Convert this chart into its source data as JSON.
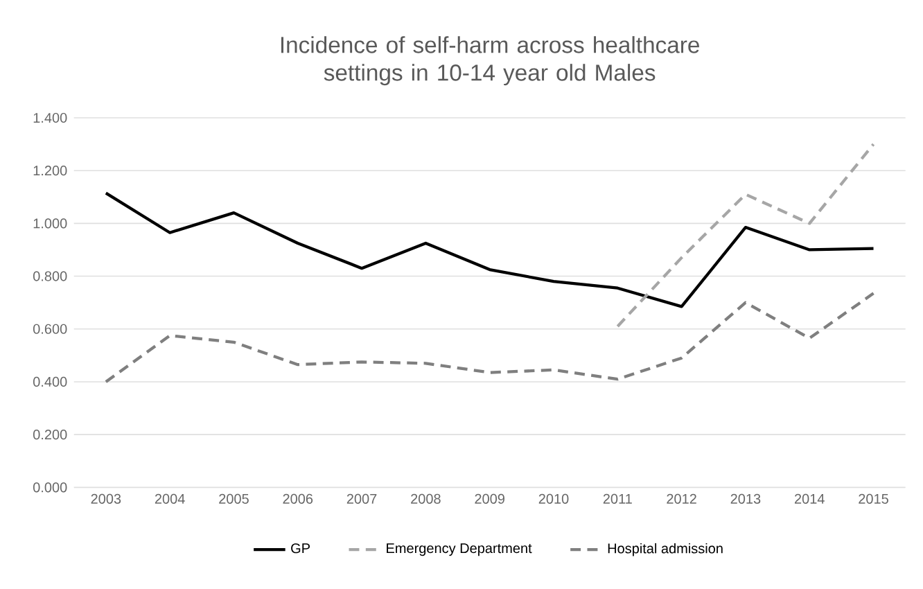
{
  "chart_data": {
    "type": "line",
    "title": "Incidence of self-harm across healthcare settings in 10-14 year old Males",
    "categories": [
      "2003",
      "2004",
      "2005",
      "2006",
      "2007",
      "2008",
      "2009",
      "2010",
      "2011",
      "2012",
      "2013",
      "2014",
      "2015"
    ],
    "series": [
      {
        "name": "GP",
        "color": "#000000",
        "line_style": "solid",
        "values": [
          1.115,
          0.965,
          1.04,
          0.925,
          0.83,
          0.925,
          0.825,
          0.78,
          0.755,
          0.685,
          0.985,
          0.9,
          0.905
        ]
      },
      {
        "name": "Emergency Department",
        "color": "#a6a6a6",
        "line_style": "dashed",
        "values": [
          null,
          null,
          null,
          null,
          null,
          null,
          null,
          null,
          0.61,
          0.87,
          1.11,
          1.0,
          1.3
        ]
      },
      {
        "name": "Hospital admission",
        "color": "#7f7f7f",
        "line_style": "dashed",
        "values": [
          0.4,
          0.575,
          0.55,
          0.465,
          0.475,
          0.47,
          0.435,
          0.445,
          0.41,
          0.49,
          0.7,
          0.565,
          0.735
        ]
      }
    ],
    "ylim": [
      0,
      1.4
    ],
    "yticks": [
      {
        "value": 0,
        "label": "0.000"
      },
      {
        "value": 0.2,
        "label": "0.200"
      },
      {
        "value": 0.4,
        "label": "0.400"
      },
      {
        "value": 0.6,
        "label": "0.600"
      },
      {
        "value": 0.8,
        "label": "0.800"
      },
      {
        "value": 1.0,
        "label": "1.000"
      },
      {
        "value": 1.2,
        "label": "1.200"
      },
      {
        "value": 1.4,
        "label": "1.400"
      }
    ],
    "grid": "y",
    "legend": "bottom",
    "marker": "none"
  }
}
